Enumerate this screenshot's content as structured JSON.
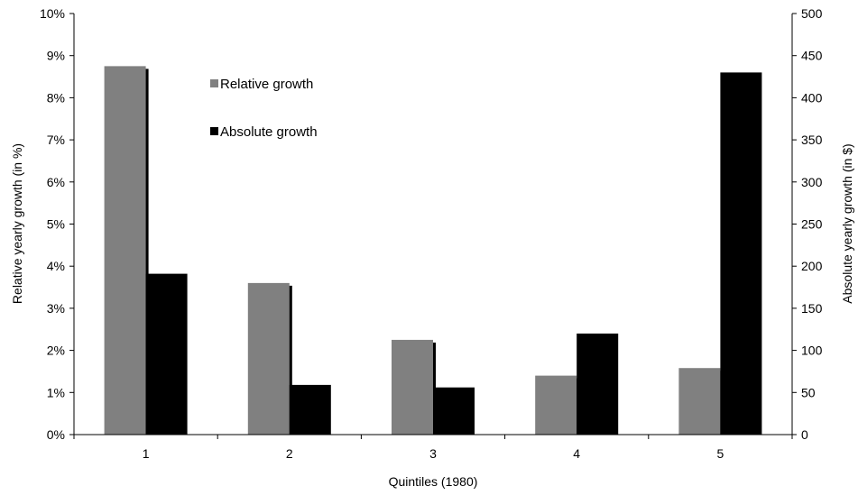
{
  "chart_data": {
    "type": "bar",
    "title": "",
    "xlabel": "Quintiles (1980)",
    "ylabel": "Relative yearly growth (in %)",
    "y2label": "Absolute yearly growth (in $)",
    "categories": [
      "1",
      "2",
      "3",
      "4",
      "5"
    ],
    "ylim": [
      0,
      10
    ],
    "y2lim": [
      0,
      500
    ],
    "yticks": [
      "0%",
      "1%",
      "2%",
      "3%",
      "4%",
      "5%",
      "6%",
      "7%",
      "8%",
      "9%",
      "10%"
    ],
    "y2ticks": [
      "0",
      "50",
      "100",
      "150",
      "200",
      "250",
      "300",
      "350",
      "400",
      "450",
      "500"
    ],
    "legend_position": "top-left",
    "grid": false,
    "series": [
      {
        "name": "Relative growth",
        "axis": "left",
        "unit": "%",
        "color": "#808080",
        "values": [
          8.75,
          3.6,
          2.25,
          1.4,
          1.58
        ]
      },
      {
        "name": "Absolute growth",
        "axis": "right",
        "unit": "$",
        "color": "#000000",
        "values": [
          191,
          59,
          56,
          120,
          430
        ]
      }
    ]
  }
}
